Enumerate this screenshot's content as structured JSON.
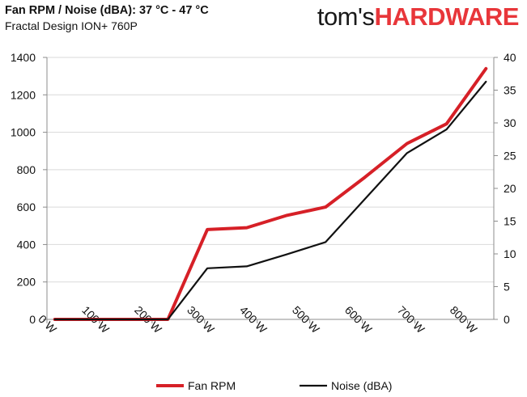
{
  "header": {
    "title": "Fan RPM / Noise (dBA): 37 °C - 47 °C",
    "subtitle": "Fractal Design ION+ 760P"
  },
  "logo": {
    "part1": "tom's",
    "part2": "HARDWARE"
  },
  "colors": {
    "fan": "#d62027",
    "noise": "#111111",
    "grid": "#d9d9d9",
    "axis": "#8c8c8c",
    "logo_accent": "#e8363a"
  },
  "chart_data": {
    "type": "line",
    "title": "Fan RPM / Noise (dBA): 37 °C - 47 °C",
    "subtitle": "Fractal Design ION+ 760P",
    "xlim": [
      0,
      850
    ],
    "x_ticks": [
      0,
      100,
      200,
      300,
      400,
      500,
      600,
      700,
      800
    ],
    "x_tick_labels": [
      "0 W",
      "100 W",
      "200 W",
      "300 W",
      "400 W",
      "500 W",
      "600 W",
      "700 W",
      "800 W"
    ],
    "ylim_left": [
      0,
      1400
    ],
    "y_left_ticks": [
      0,
      200,
      400,
      600,
      800,
      1000,
      1200,
      1400
    ],
    "ylim_right": [
      0,
      40
    ],
    "y_right_ticks": [
      0,
      5,
      10,
      15,
      20,
      25,
      30,
      35,
      40
    ],
    "grid": true,
    "legend_position": "bottom",
    "series": [
      {
        "name": "Fan RPM",
        "axis": "left",
        "color": "#d62027",
        "x": [
          15,
          90,
          165,
          230,
          305,
          380,
          455,
          530,
          605,
          685,
          760,
          835
        ],
        "y": [
          0,
          0,
          0,
          0,
          480,
          490,
          555,
          600,
          760,
          940,
          1045,
          1340
        ]
      },
      {
        "name": "Noise (dBA)",
        "axis": "right",
        "color": "#111111",
        "x": [
          15,
          90,
          165,
          230,
          305,
          380,
          455,
          530,
          605,
          685,
          760,
          835
        ],
        "y": [
          0,
          0,
          0,
          0,
          7.8,
          8.1,
          9.9,
          11.8,
          18.4,
          25.4,
          29.0,
          36.3
        ]
      }
    ]
  }
}
